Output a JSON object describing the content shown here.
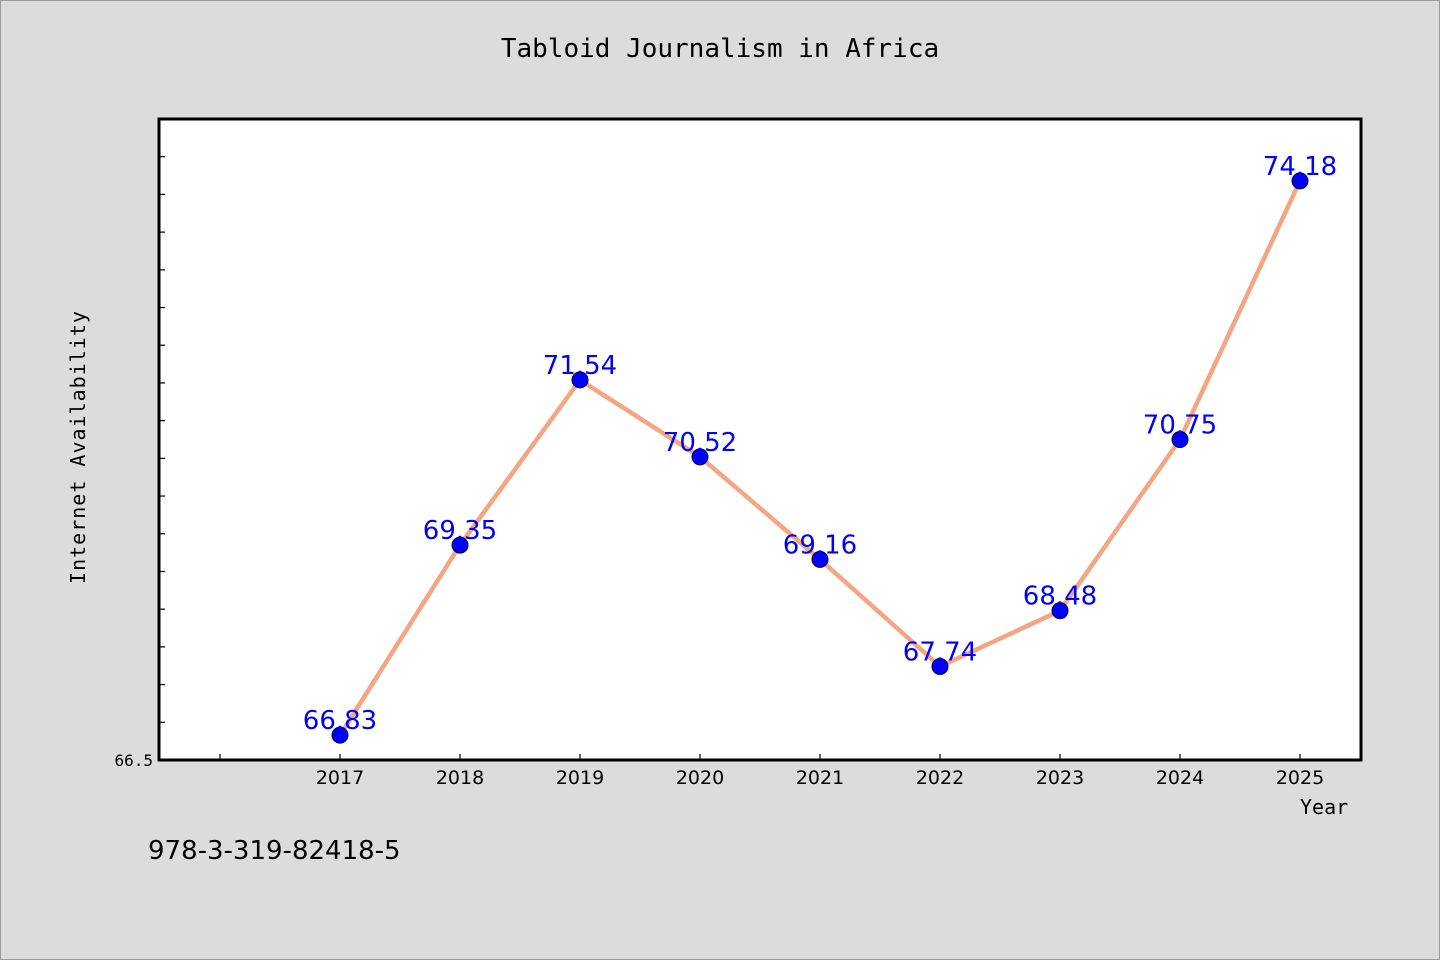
{
  "chart_data": {
    "type": "line",
    "title": "Tabloid Journalism in Africa",
    "xlabel": "Year",
    "ylabel": "Internet Availability",
    "categories": [
      "2017",
      "2018",
      "2019",
      "2020",
      "2021",
      "2022",
      "2023",
      "2024",
      "2025"
    ],
    "series": [
      {
        "values": [
          66.83,
          69.35,
          71.54,
          70.52,
          69.16,
          67.74,
          68.48,
          70.75,
          74.18
        ]
      }
    ],
    "data_labels": [
      "66.83",
      "69.35",
      "71.54",
      "70.52",
      "69.16",
      "67.74",
      "68.48",
      "70.75",
      "74.18"
    ],
    "ylim": [
      66.5,
      75.0
    ],
    "y_tick_label": "66.5",
    "grid": false,
    "legend": "none",
    "colors": {
      "line": "#f4a582",
      "marker": "#0000ff",
      "data_label": "#0000ff",
      "plot_background": "#ffffff",
      "figure_background": "#dcdcdc"
    }
  },
  "footer": {
    "code": "978-3-319-82418-5"
  }
}
